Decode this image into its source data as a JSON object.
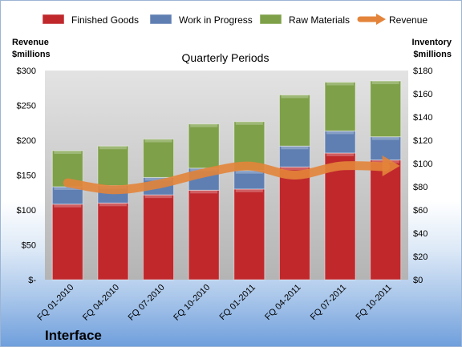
{
  "chart_data": {
    "type": "bar",
    "subtype": "stacked-bar-with-line",
    "title": "Quarterly Periods",
    "company": "Interface",
    "categories": [
      "FQ 01-2010",
      "FQ 04-2010",
      "FQ 07-2010",
      "FQ 10-2010",
      "FQ 01-2011",
      "FQ 04-2011",
      "FQ 07-2011",
      "FQ 10-2011"
    ],
    "left_axis": {
      "label_line1": "Revenue",
      "label_line2": "$millions",
      "ylim": [
        0,
        300
      ],
      "tick_labels": [
        "$-",
        "$50",
        "$100",
        "$150",
        "$200",
        "$250",
        "$300"
      ]
    },
    "right_axis": {
      "label_line1": "Inventory",
      "label_line2": "$millions",
      "ylim": [
        0,
        180
      ],
      "tick_labels": [
        "$0",
        "$20",
        "$40",
        "$60",
        "$80",
        "$100",
        "$120",
        "$140",
        "$160",
        "$180"
      ]
    },
    "series": [
      {
        "name": "Finished Goods",
        "axis": "right",
        "kind": "bar",
        "color": "#c0282c",
        "values": [
          65,
          66,
          73,
          77,
          78,
          97,
          109,
          103
        ]
      },
      {
        "name": "Work in Progress",
        "axis": "right",
        "kind": "bar",
        "color": "#5f7fb2",
        "values": [
          15,
          15,
          15,
          19,
          16,
          18,
          19,
          20
        ]
      },
      {
        "name": "Raw Materials",
        "axis": "right",
        "kind": "bar",
        "color": "#7ea048",
        "values": [
          31,
          34,
          33,
          38,
          42,
          44,
          42,
          48
        ]
      },
      {
        "name": "Revenue",
        "axis": "left",
        "kind": "line",
        "color": "#e3843a",
        "values": [
          139,
          129,
          137,
          153,
          163,
          150,
          163,
          162
        ]
      }
    ],
    "legend_position": "top",
    "grid": false
  }
}
